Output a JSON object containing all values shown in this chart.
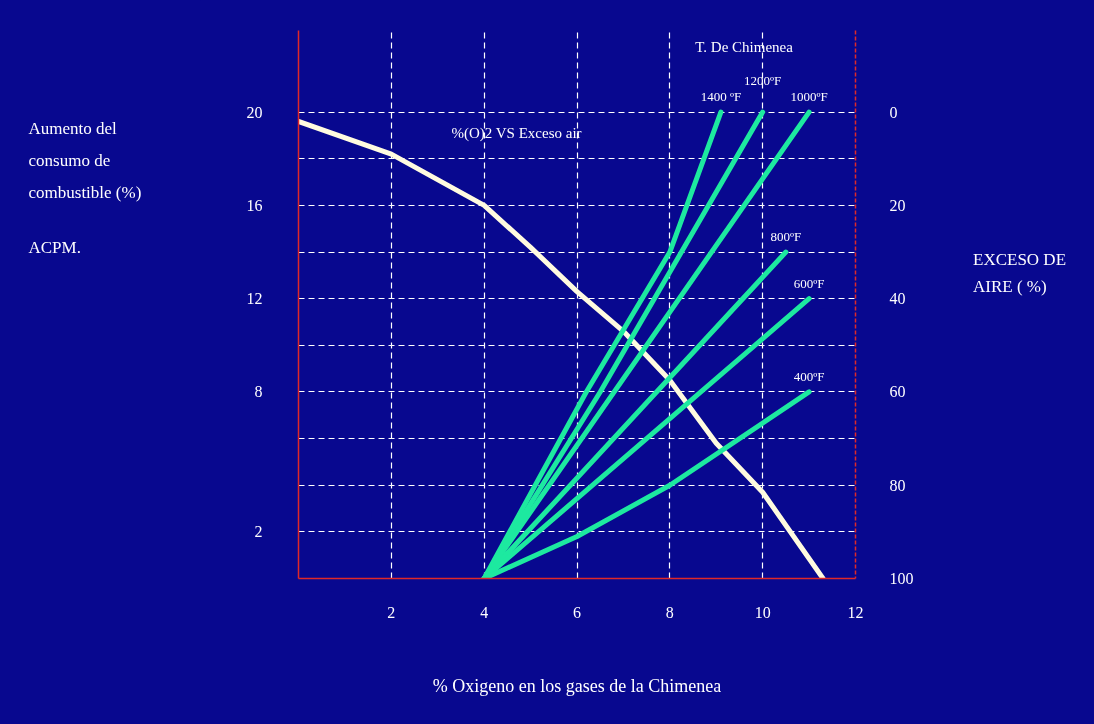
{
  "chart_data": {
    "type": "line",
    "xlabel": "% Oxigeno en los gases de la Chimenea",
    "y2label": "EXCESO DE AIRE ( %)",
    "annotations": [
      "T. De Chimenea",
      "%(O)2 VS Exceso air",
      "Aumento del consumo de combustible (%)",
      "ACPM."
    ],
    "xlim": [
      0,
      12
    ],
    "xticks": [
      2,
      4,
      6,
      8,
      10,
      12
    ],
    "ylim": [
      0,
      23.5
    ],
    "yticks": [
      2,
      {
        "value": 4,
        "label": null
      },
      {
        "value": 6,
        "label": null
      },
      8,
      {
        "value": 10,
        "label": null
      },
      12,
      {
        "value": 14,
        "label": null
      },
      16,
      {
        "value": 18,
        "label": null
      },
      20
    ],
    "y2lim": [
      100,
      -17.5
    ],
    "y2ticks": [
      0,
      20,
      40,
      60,
      80,
      100
    ],
    "grid": true,
    "series": [
      {
        "color": "#fffbe0",
        "x": [
          0,
          2,
          4,
          5,
          6,
          7,
          8,
          9,
          10,
          11.3
        ],
        "values": [
          19.6,
          18.2,
          16,
          14.2,
          12.3,
          10.6,
          8.5,
          5.8,
          3.7,
          0
        ]
      },
      {
        "name": "1400 ºF",
        "color": "#1de9a0",
        "x": [
          4,
          6.2,
          8,
          9.1
        ],
        "values": [
          0,
          8,
          14,
          20
        ]
      },
      {
        "name": "1200ºF",
        "color": "#1de9a0",
        "x": [
          4,
          6.5,
          10
        ],
        "values": [
          0,
          8,
          20
        ]
      },
      {
        "name": "1000ºF",
        "color": "#1de9a0",
        "x": [
          4,
          11
        ],
        "values": [
          0,
          20
        ]
      },
      {
        "name": "800ºF",
        "color": "#1de9a0",
        "x": [
          4,
          10.5
        ],
        "values": [
          0,
          14
        ]
      },
      {
        "name": "600ºF",
        "color": "#1de9a0",
        "x": [
          4,
          11
        ],
        "values": [
          0,
          12
        ]
      },
      {
        "name": "400ºF",
        "color": "#1de9a0",
        "x": [
          4,
          6,
          8,
          11
        ],
        "values": [
          0,
          1.8,
          4,
          8
        ]
      }
    ]
  }
}
